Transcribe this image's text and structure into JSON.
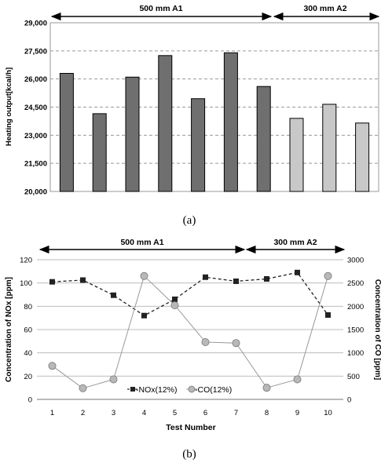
{
  "chart_data": [
    {
      "type": "bar",
      "ylabel": "Heating output[kcal/h]",
      "ylim": [
        20000,
        29000
      ],
      "yticks": [
        "20,000",
        "21,500",
        "23,000",
        "24,500",
        "26,000",
        "27,500",
        "29,000"
      ],
      "grid": true,
      "series": [
        {
          "name": "500 mm A1",
          "color": "#6f6f6f",
          "values": [
            26300,
            24150,
            26100,
            27250,
            24950,
            27400,
            25600
          ]
        },
        {
          "name": "300 mm A2",
          "color": "#c8c8c8",
          "values": [
            23900,
            24650,
            23650
          ]
        }
      ],
      "group_labels": [
        "500 mm A1",
        "300 mm A2"
      ],
      "caption": "(a)"
    },
    {
      "type": "line",
      "xlabel": "Test Number",
      "ylabel_left": "Concentration of NOx [ppm]",
      "ylabel_right": "Concentration of CO [ppm]",
      "x": [
        1,
        2,
        3,
        4,
        5,
        6,
        7,
        8,
        9,
        10
      ],
      "ylim_left": [
        0,
        120
      ],
      "ylim_right": [
        0,
        3000
      ],
      "yticks_left": [
        "0",
        "20",
        "40",
        "60",
        "80",
        "100",
        "120"
      ],
      "yticks_right": [
        "0",
        "500",
        "1000",
        "1500",
        "2000",
        "2500",
        "3000"
      ],
      "grid": true,
      "series": [
        {
          "name": "NOx(12%)",
          "axis": "left",
          "marker": "square",
          "style": "dashed",
          "color": "#222222",
          "values": [
            101,
            102.5,
            89.5,
            72,
            86,
            105,
            101.5,
            103.5,
            109,
            72.5
          ]
        },
        {
          "name": "CO(12%)",
          "axis": "right",
          "marker": "circle",
          "style": "solid",
          "color": "#999999",
          "values": [
            720,
            240,
            430,
            2650,
            2020,
            1230,
            1210,
            250,
            430,
            2650
          ]
        }
      ],
      "group_labels": [
        "500 mm A1",
        "300 mm A2"
      ],
      "legend": [
        "-NOx(12%)",
        "-CO(12%)"
      ],
      "caption": "(b)"
    }
  ]
}
